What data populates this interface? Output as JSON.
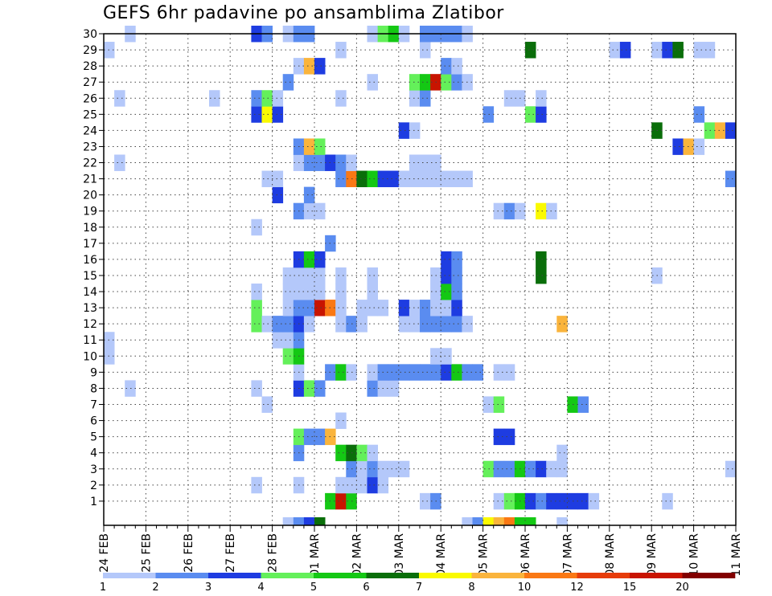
{
  "chart_data": {
    "type": "heatmap",
    "title": "GEFS 6hr padavine po ansamblima Zlatibor",
    "x_labels": [
      "24 FEB",
      "25 FEB",
      "26 FEB",
      "27 FEB",
      "28 FEB",
      "01 MAR",
      "02 MAR",
      "03 MAR",
      "04 MAR",
      "05 MAR",
      "06 MAR",
      "07 MAR",
      "08 MAR",
      "09 MAR",
      "10 MAR",
      "11 MAR"
    ],
    "y_labels": [
      "1",
      "2",
      "3",
      "4",
      "5",
      "6",
      "7",
      "8",
      "9",
      "10",
      "11",
      "12",
      "13",
      "14",
      "15",
      "16",
      "17",
      "18",
      "19",
      "20",
      "21",
      "22",
      "23",
      "24",
      "25",
      "26",
      "27",
      "28",
      "29",
      "30"
    ],
    "xlim": [
      0,
      60
    ],
    "ylim": [
      0,
      30
    ],
    "grid": true,
    "legend": {
      "position": "bottom",
      "labels": [
        "1",
        "2",
        "3",
        "4",
        "5",
        "6",
        "7",
        "8",
        "10",
        "12",
        "15",
        "20"
      ],
      "colors": [
        "#b4c8fa",
        "#5a8cf0",
        "#1e3ce1",
        "#64f05a",
        "#14c814",
        "#0a6e0a",
        "#fafa00",
        "#fab43c",
        "#fa7814",
        "#e63c0a",
        "#c81400",
        "#820000"
      ]
    },
    "cells": [
      [
        17,
        0,
        1
      ],
      [
        18,
        0,
        2
      ],
      [
        19,
        0,
        3
      ],
      [
        20,
        0,
        6
      ],
      [
        34,
        0,
        1
      ],
      [
        35,
        0,
        2
      ],
      [
        36,
        0,
        7
      ],
      [
        37,
        0,
        8
      ],
      [
        38,
        0,
        9
      ],
      [
        39,
        0,
        5
      ],
      [
        40,
        0,
        5
      ],
      [
        43,
        0,
        1
      ],
      [
        21,
        1,
        5
      ],
      [
        22,
        1,
        11
      ],
      [
        23,
        1,
        5
      ],
      [
        30,
        1,
        1
      ],
      [
        31,
        1,
        2
      ],
      [
        37,
        1,
        1
      ],
      [
        38,
        1,
        4
      ],
      [
        39,
        1,
        5
      ],
      [
        40,
        1,
        3
      ],
      [
        41,
        1,
        2
      ],
      [
        42,
        1,
        3
      ],
      [
        43,
        1,
        3
      ],
      [
        44,
        1,
        3
      ],
      [
        45,
        1,
        3
      ],
      [
        46,
        1,
        1
      ],
      [
        53,
        1,
        1
      ],
      [
        14,
        2,
        1
      ],
      [
        18,
        2,
        1
      ],
      [
        22,
        2,
        1
      ],
      [
        23,
        2,
        1
      ],
      [
        24,
        2,
        1
      ],
      [
        25,
        2,
        3
      ],
      [
        26,
        2,
        1
      ],
      [
        23,
        3,
        2
      ],
      [
        24,
        3,
        1
      ],
      [
        25,
        3,
        2
      ],
      [
        26,
        3,
        1
      ],
      [
        27,
        3,
        1
      ],
      [
        28,
        3,
        1
      ],
      [
        36,
        3,
        4
      ],
      [
        37,
        3,
        2
      ],
      [
        38,
        3,
        2
      ],
      [
        39,
        3,
        5
      ],
      [
        40,
        3,
        2
      ],
      [
        41,
        3,
        3
      ],
      [
        42,
        3,
        1
      ],
      [
        43,
        3,
        1
      ],
      [
        59,
        3,
        1
      ],
      [
        18,
        4,
        2
      ],
      [
        22,
        4,
        5
      ],
      [
        23,
        4,
        6
      ],
      [
        24,
        4,
        4
      ],
      [
        25,
        4,
        1
      ],
      [
        43,
        4,
        1
      ],
      [
        18,
        5,
        4
      ],
      [
        19,
        5,
        2
      ],
      [
        20,
        5,
        2
      ],
      [
        21,
        5,
        8
      ],
      [
        37,
        5,
        3
      ],
      [
        38,
        5,
        3
      ],
      [
        22,
        6,
        1
      ],
      [
        15,
        7,
        1
      ],
      [
        36,
        7,
        1
      ],
      [
        37,
        7,
        4
      ],
      [
        44,
        7,
        5
      ],
      [
        45,
        7,
        2
      ],
      [
        2,
        8,
        1
      ],
      [
        14,
        8,
        1
      ],
      [
        18,
        8,
        3
      ],
      [
        19,
        8,
        4
      ],
      [
        20,
        8,
        2
      ],
      [
        25,
        8,
        2
      ],
      [
        26,
        8,
        1
      ],
      [
        27,
        8,
        1
      ],
      [
        18,
        9,
        1
      ],
      [
        21,
        9,
        2
      ],
      [
        22,
        9,
        5
      ],
      [
        23,
        9,
        1
      ],
      [
        25,
        9,
        1
      ],
      [
        26,
        9,
        2
      ],
      [
        27,
        9,
        2
      ],
      [
        28,
        9,
        2
      ],
      [
        29,
        9,
        2
      ],
      [
        30,
        9,
        2
      ],
      [
        31,
        9,
        2
      ],
      [
        32,
        9,
        3
      ],
      [
        33,
        9,
        5
      ],
      [
        34,
        9,
        2
      ],
      [
        35,
        9,
        2
      ],
      [
        37,
        9,
        1
      ],
      [
        38,
        9,
        1
      ],
      [
        0,
        10,
        1
      ],
      [
        17,
        10,
        4
      ],
      [
        18,
        10,
        5
      ],
      [
        31,
        10,
        1
      ],
      [
        32,
        10,
        1
      ],
      [
        0,
        11,
        1
      ],
      [
        16,
        11,
        1
      ],
      [
        17,
        11,
        1
      ],
      [
        18,
        11,
        2
      ],
      [
        14,
        12,
        4
      ],
      [
        15,
        12,
        1
      ],
      [
        16,
        12,
        2
      ],
      [
        17,
        12,
        2
      ],
      [
        18,
        12,
        3
      ],
      [
        19,
        12,
        1
      ],
      [
        22,
        12,
        1
      ],
      [
        23,
        12,
        2
      ],
      [
        24,
        12,
        1
      ],
      [
        28,
        12,
        1
      ],
      [
        29,
        12,
        1
      ],
      [
        30,
        12,
        2
      ],
      [
        31,
        12,
        2
      ],
      [
        32,
        12,
        2
      ],
      [
        33,
        12,
        2
      ],
      [
        34,
        12,
        1
      ],
      [
        43,
        12,
        8
      ],
      [
        14,
        13,
        4
      ],
      [
        17,
        13,
        1
      ],
      [
        18,
        13,
        2
      ],
      [
        19,
        13,
        2
      ],
      [
        20,
        13,
        11
      ],
      [
        21,
        13,
        9
      ],
      [
        22,
        13,
        1
      ],
      [
        24,
        13,
        1
      ],
      [
        25,
        13,
        1
      ],
      [
        26,
        13,
        1
      ],
      [
        28,
        13,
        3
      ],
      [
        29,
        13,
        1
      ],
      [
        30,
        13,
        2
      ],
      [
        31,
        13,
        1
      ],
      [
        32,
        13,
        1
      ],
      [
        33,
        13,
        3
      ],
      [
        14,
        14,
        1
      ],
      [
        17,
        14,
        1
      ],
      [
        18,
        14,
        1
      ],
      [
        19,
        14,
        1
      ],
      [
        20,
        14,
        1
      ],
      [
        22,
        14,
        1
      ],
      [
        25,
        14,
        1
      ],
      [
        31,
        14,
        1
      ],
      [
        32,
        14,
        5
      ],
      [
        33,
        14,
        2
      ],
      [
        17,
        15,
        1
      ],
      [
        18,
        15,
        1
      ],
      [
        19,
        15,
        1
      ],
      [
        20,
        15,
        1
      ],
      [
        22,
        15,
        1
      ],
      [
        25,
        15,
        1
      ],
      [
        31,
        15,
        1
      ],
      [
        32,
        15,
        3
      ],
      [
        33,
        15,
        2
      ],
      [
        41,
        15,
        6
      ],
      [
        52,
        15,
        1
      ],
      [
        18,
        16,
        3
      ],
      [
        19,
        16,
        5
      ],
      [
        20,
        16,
        3
      ],
      [
        32,
        16,
        3
      ],
      [
        33,
        16,
        2
      ],
      [
        41,
        16,
        6
      ],
      [
        21,
        17,
        2
      ],
      [
        14,
        18,
        1
      ],
      [
        18,
        19,
        2
      ],
      [
        19,
        19,
        1
      ],
      [
        20,
        19,
        1
      ],
      [
        37,
        19,
        1
      ],
      [
        38,
        19,
        2
      ],
      [
        39,
        19,
        1
      ],
      [
        41,
        19,
        7
      ],
      [
        42,
        19,
        1
      ],
      [
        16,
        20,
        3
      ],
      [
        19,
        20,
        2
      ],
      [
        15,
        21,
        1
      ],
      [
        16,
        21,
        1
      ],
      [
        22,
        21,
        2
      ],
      [
        23,
        21,
        9
      ],
      [
        24,
        21,
        6
      ],
      [
        25,
        21,
        5
      ],
      [
        26,
        21,
        3
      ],
      [
        27,
        21,
        3
      ],
      [
        28,
        21,
        1
      ],
      [
        29,
        21,
        1
      ],
      [
        30,
        21,
        1
      ],
      [
        31,
        21,
        1
      ],
      [
        32,
        21,
        1
      ],
      [
        33,
        21,
        1
      ],
      [
        34,
        21,
        1
      ],
      [
        59,
        21,
        2
      ],
      [
        1,
        22,
        1
      ],
      [
        18,
        22,
        1
      ],
      [
        19,
        22,
        2
      ],
      [
        20,
        22,
        2
      ],
      [
        21,
        22,
        3
      ],
      [
        22,
        22,
        2
      ],
      [
        23,
        22,
        1
      ],
      [
        29,
        22,
        1
      ],
      [
        30,
        22,
        1
      ],
      [
        31,
        22,
        1
      ],
      [
        18,
        23,
        2
      ],
      [
        19,
        23,
        8
      ],
      [
        20,
        23,
        4
      ],
      [
        54,
        23,
        3
      ],
      [
        55,
        23,
        8
      ],
      [
        56,
        23,
        1
      ],
      [
        28,
        24,
        3
      ],
      [
        29,
        24,
        1
      ],
      [
        52,
        24,
        6
      ],
      [
        57,
        24,
        4
      ],
      [
        58,
        24,
        8
      ],
      [
        59,
        24,
        3
      ],
      [
        14,
        25,
        3
      ],
      [
        15,
        25,
        7
      ],
      [
        16,
        25,
        3
      ],
      [
        36,
        25,
        2
      ],
      [
        40,
        25,
        4
      ],
      [
        41,
        25,
        3
      ],
      [
        56,
        25,
        2
      ],
      [
        1,
        26,
        1
      ],
      [
        10,
        26,
        1
      ],
      [
        14,
        26,
        2
      ],
      [
        15,
        26,
        4
      ],
      [
        16,
        26,
        1
      ],
      [
        22,
        26,
        1
      ],
      [
        29,
        26,
        1
      ],
      [
        30,
        26,
        2
      ],
      [
        38,
        26,
        1
      ],
      [
        39,
        26,
        1
      ],
      [
        41,
        26,
        1
      ],
      [
        17,
        27,
        2
      ],
      [
        25,
        27,
        1
      ],
      [
        29,
        27,
        4
      ],
      [
        30,
        27,
        5
      ],
      [
        31,
        27,
        11
      ],
      [
        32,
        27,
        4
      ],
      [
        33,
        27,
        2
      ],
      [
        34,
        27,
        1
      ],
      [
        18,
        28,
        1
      ],
      [
        19,
        28,
        8
      ],
      [
        20,
        28,
        3
      ],
      [
        32,
        28,
        2
      ],
      [
        33,
        28,
        1
      ],
      [
        0,
        29,
        1
      ],
      [
        22,
        29,
        1
      ],
      [
        30,
        29,
        1
      ],
      [
        40,
        29,
        6
      ],
      [
        48,
        29,
        1
      ],
      [
        49,
        29,
        3
      ],
      [
        52,
        29,
        1
      ],
      [
        53,
        29,
        3
      ],
      [
        54,
        29,
        6
      ],
      [
        56,
        29,
        1
      ],
      [
        57,
        29,
        1
      ],
      [
        2,
        30,
        1
      ],
      [
        14,
        30,
        3
      ],
      [
        15,
        30,
        2
      ],
      [
        17,
        30,
        1
      ],
      [
        18,
        30,
        2
      ],
      [
        19,
        30,
        2
      ],
      [
        25,
        30,
        1
      ],
      [
        26,
        30,
        4
      ],
      [
        27,
        30,
        5
      ],
      [
        28,
        30,
        1
      ],
      [
        30,
        30,
        2
      ],
      [
        31,
        30,
        2
      ],
      [
        32,
        30,
        2
      ],
      [
        33,
        30,
        2
      ],
      [
        34,
        30,
        1
      ]
    ]
  }
}
